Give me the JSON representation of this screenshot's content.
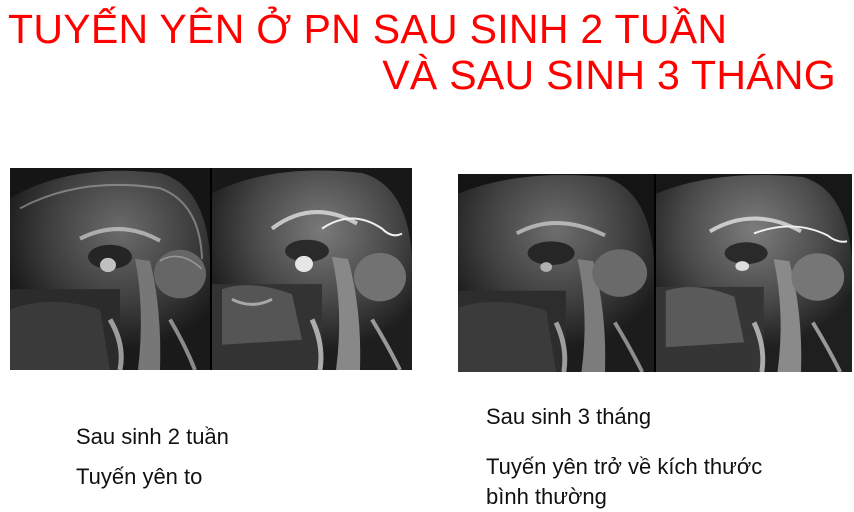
{
  "title": {
    "line1": "TUYẾN YÊN Ở PN SAU SINH 2 TUẦN",
    "line2": "VÀ SAU SINH 3 THÁNG"
  },
  "colors": {
    "title": "#ff0000",
    "text": "#111111",
    "image_background": "#000000"
  },
  "panels": [
    {
      "images": [
        "sagittal-mri-t1",
        "sagittal-mri-t1-contrast"
      ],
      "caption_1": "Sau sinh 2 tuần",
      "caption_2": "Tuyến yên to"
    },
    {
      "images": [
        "sagittal-mri-t1",
        "sagittal-mri-t1-contrast"
      ],
      "caption_1": "Sau sinh 3 tháng",
      "caption_2_line1": "Tuyến yên trở về kích thước",
      "caption_2_line2": "bình thường"
    }
  ]
}
